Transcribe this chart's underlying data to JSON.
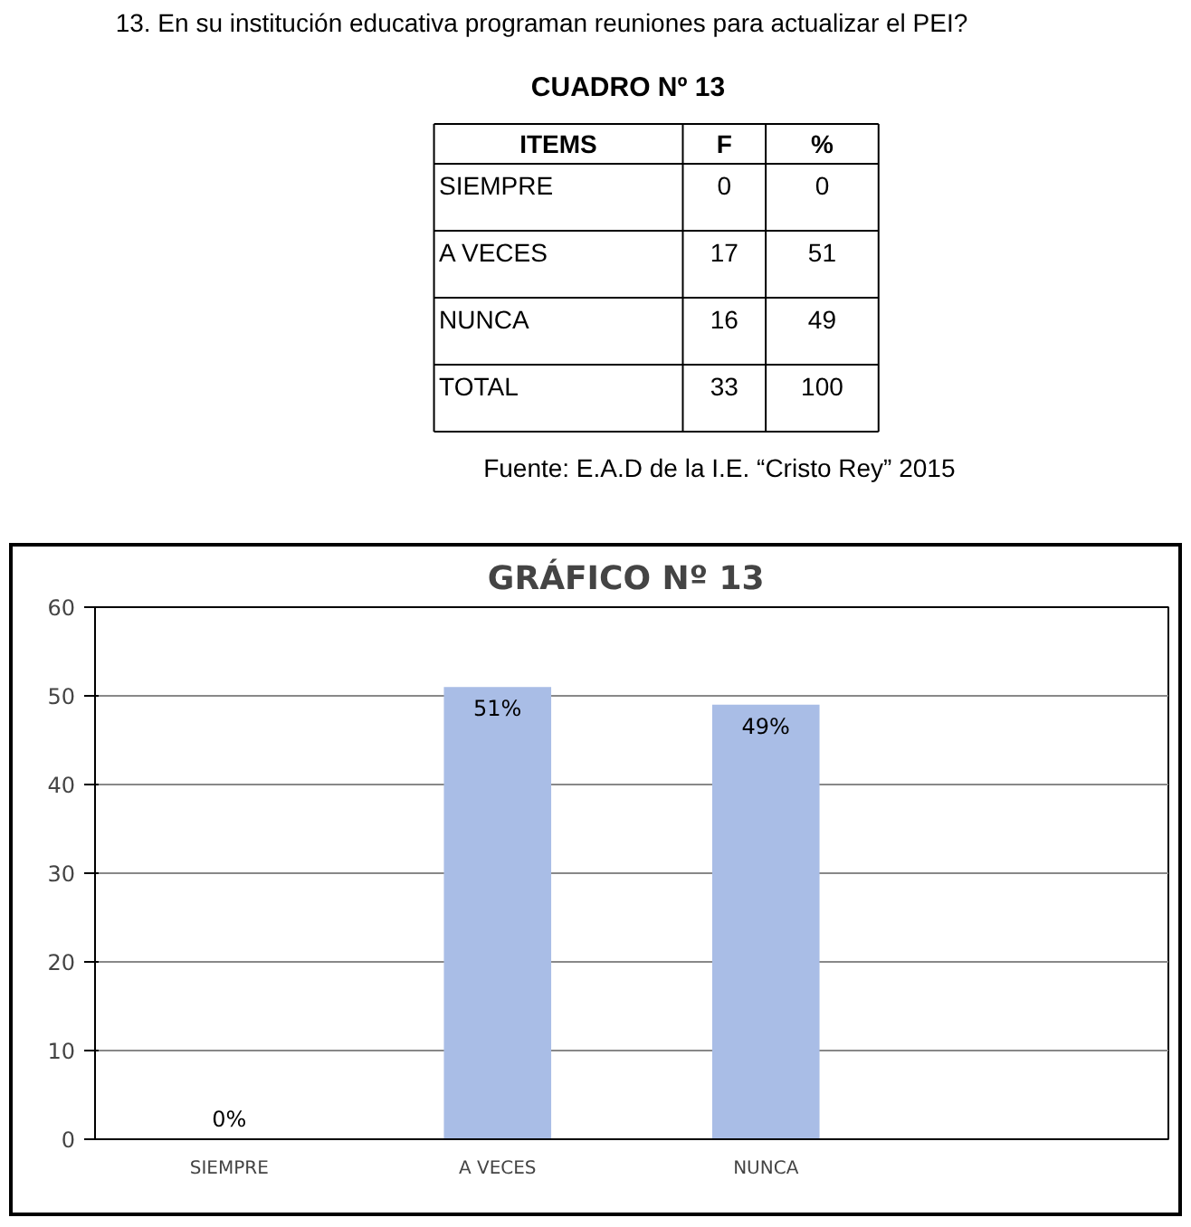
{
  "chart_data": [
    {
      "type": "other",
      "title": "CUADRO Nº 13",
      "annotations": [
        "13. En su institución educativa programan reuniones para actualizar el PEI?",
        "ITEMS",
        "F",
        "%",
        "SIEMPRE",
        "0",
        "0",
        "A VECES",
        "17",
        "51",
        "NUNCA",
        "16",
        "49",
        "TOTAL",
        "33",
        "100",
        "Fuente: E.A.D de la I.E. “Cristo Rey” 2015"
      ]
    },
    {
      "type": "bar",
      "title": "GRÁFICO Nº  13",
      "categories": [
        "SIEMPRE",
        "A VECES",
        "NUNCA",
        null
      ],
      "values": [
        0,
        51,
        49,
        null
      ],
      "value_labels": [
        "0%",
        "51%",
        "49%",
        null
      ],
      "color": "#a9bde6",
      "ylim": [
        0,
        60
      ],
      "yticks": [
        0,
        10,
        20,
        30,
        40,
        50,
        60
      ],
      "grid": "y"
    }
  ]
}
